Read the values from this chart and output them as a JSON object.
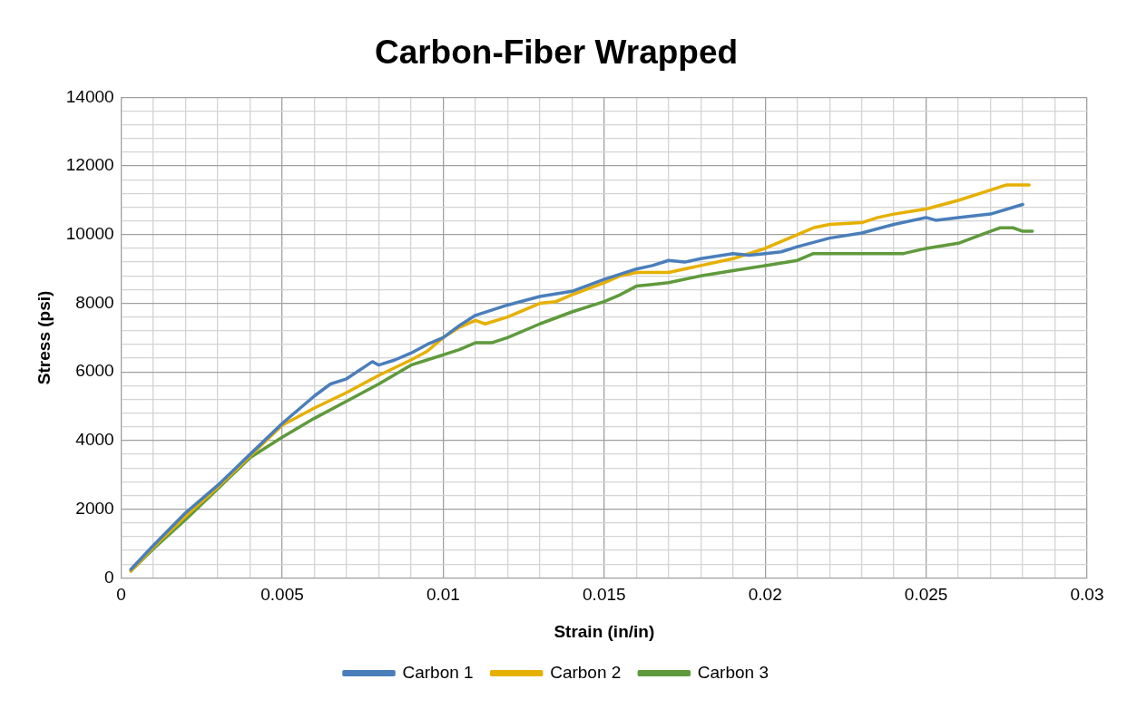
{
  "chart_data": {
    "type": "line",
    "title": "Carbon-Fiber Wrapped",
    "xlabel": "Strain (in/in)",
    "ylabel": "Stress (psi)",
    "xlim": [
      0,
      0.03
    ],
    "ylim": [
      0,
      14000
    ],
    "xticks": [
      0,
      {
        "value": 0.001,
        "label": null
      },
      {
        "value": 0.002,
        "label": null
      },
      {
        "value": 0.003,
        "label": null
      },
      {
        "value": 0.004,
        "label": null
      },
      0.005,
      {
        "value": 0.006,
        "label": null
      },
      {
        "value": 0.007,
        "label": null
      },
      {
        "value": 0.008,
        "label": null
      },
      {
        "value": 0.009,
        "label": null
      },
      0.01,
      {
        "value": 0.011,
        "label": null
      },
      {
        "value": 0.012,
        "label": null
      },
      {
        "value": 0.013,
        "label": null
      },
      {
        "value": 0.014,
        "label": null
      },
      0.015,
      {
        "value": 0.016,
        "label": null
      },
      {
        "value": 0.017,
        "label": null
      },
      {
        "value": 0.018,
        "label": null
      },
      {
        "value": 0.019,
        "label": null
      },
      0.02,
      {
        "value": 0.021,
        "label": null
      },
      {
        "value": 0.022,
        "label": null
      },
      {
        "value": 0.023,
        "label": null
      },
      {
        "value": 0.024,
        "label": null
      },
      0.025,
      {
        "value": 0.026,
        "label": null
      },
      {
        "value": 0.027,
        "label": null
      },
      {
        "value": 0.028,
        "label": null
      },
      {
        "value": 0.029,
        "label": null
      },
      0.03
    ],
    "yticks": [
      0,
      {
        "value": 400,
        "label": null
      },
      {
        "value": 800,
        "label": null
      },
      {
        "value": 1200,
        "label": null
      },
      {
        "value": 1600,
        "label": null
      },
      2000,
      {
        "value": 2400,
        "label": null
      },
      {
        "value": 2800,
        "label": null
      },
      {
        "value": 3200,
        "label": null
      },
      {
        "value": 3600,
        "label": null
      },
      4000,
      {
        "value": 4400,
        "label": null
      },
      {
        "value": 4800,
        "label": null
      },
      {
        "value": 5200,
        "label": null
      },
      {
        "value": 5600,
        "label": null
      },
      6000,
      {
        "value": 6400,
        "label": null
      },
      {
        "value": 6800,
        "label": null
      },
      {
        "value": 7200,
        "label": null
      },
      {
        "value": 7600,
        "label": null
      },
      8000,
      {
        "value": 8400,
        "label": null
      },
      {
        "value": 8800,
        "label": null
      },
      {
        "value": 9200,
        "label": null
      },
      {
        "value": 9600,
        "label": null
      },
      10000,
      {
        "value": 10400,
        "label": null
      },
      {
        "value": 10800,
        "label": null
      },
      {
        "value": 11200,
        "label": null
      },
      {
        "value": 11600,
        "label": null
      },
      12000,
      {
        "value": 12400,
        "label": null
      },
      {
        "value": 12800,
        "label": null
      },
      {
        "value": 13200,
        "label": null
      },
      {
        "value": 13600,
        "label": null
      },
      14000
    ],
    "grid": true,
    "legend": "bottom",
    "marker": "none",
    "line_style": "solid",
    "series": [
      {
        "name": "Carbon 1",
        "color": "#4a7ebb",
        "x": [
          0.0003,
          0.001,
          0.002,
          0.003,
          0.004,
          0.005,
          0.006,
          0.0065,
          0.007,
          0.0078,
          0.008,
          0.0085,
          0.009,
          0.0095,
          0.01,
          0.0105,
          0.011,
          0.012,
          0.013,
          0.014,
          0.015,
          0.016,
          0.0165,
          0.017,
          0.0175,
          0.018,
          0.019,
          0.0195,
          0.02,
          0.0205,
          0.021,
          0.022,
          0.023,
          0.024,
          0.025,
          0.0253,
          0.026,
          0.027,
          0.028
        ],
        "values": [
          250,
          950,
          1900,
          2700,
          3600,
          4500,
          5300,
          5650,
          5800,
          6300,
          6200,
          6350,
          6550,
          6800,
          7000,
          7350,
          7650,
          7950,
          8200,
          8350,
          8700,
          9000,
          9100,
          9250,
          9200,
          9300,
          9450,
          9400,
          9450,
          9500,
          9650,
          9900,
          10050,
          10300,
          10500,
          10420,
          10500,
          10600,
          10880
        ]
      },
      {
        "name": "Carbon 2",
        "color": "#e6b000",
        "x": [
          0.0003,
          0.001,
          0.002,
          0.003,
          0.004,
          0.005,
          0.0055,
          0.006,
          0.007,
          0.008,
          0.009,
          0.0095,
          0.01,
          0.0105,
          0.011,
          0.0113,
          0.012,
          0.0125,
          0.013,
          0.0135,
          0.014,
          0.015,
          0.0155,
          0.016,
          0.017,
          0.018,
          0.019,
          0.02,
          0.021,
          0.0215,
          0.022,
          0.023,
          0.0235,
          0.024,
          0.025,
          0.026,
          0.027,
          0.0275,
          0.0282
        ],
        "values": [
          200,
          900,
          1800,
          2650,
          3550,
          4450,
          4700,
          4950,
          5400,
          5900,
          6350,
          6600,
          7000,
          7300,
          7500,
          7400,
          7600,
          7800,
          8000,
          8050,
          8250,
          8600,
          8800,
          8900,
          8900,
          9100,
          9300,
          9600,
          10000,
          10200,
          10300,
          10350,
          10500,
          10600,
          10750,
          11000,
          11300,
          11450,
          11450
        ]
      },
      {
        "name": "Carbon 3",
        "color": "#5f9a3c",
        "x": [
          0.0003,
          0.001,
          0.002,
          0.003,
          0.004,
          0.0045,
          0.005,
          0.006,
          0.007,
          0.008,
          0.009,
          0.0095,
          0.01,
          0.0105,
          0.011,
          0.0115,
          0.012,
          0.013,
          0.014,
          0.015,
          0.0155,
          0.016,
          0.0165,
          0.017,
          0.018,
          0.019,
          0.02,
          0.021,
          0.0215,
          0.0243,
          0.025,
          0.026,
          0.027,
          0.0273,
          0.0277,
          0.028,
          0.0283
        ],
        "values": [
          200,
          850,
          1700,
          2600,
          3500,
          3800,
          4100,
          4650,
          5150,
          5650,
          6200,
          6350,
          6500,
          6650,
          6850,
          6850,
          7000,
          7400,
          7750,
          8050,
          8250,
          8500,
          8550,
          8600,
          8800,
          8950,
          9100,
          9250,
          9450,
          9450,
          9600,
          9750,
          10100,
          10200,
          10200,
          10100,
          10100
        ]
      }
    ]
  }
}
